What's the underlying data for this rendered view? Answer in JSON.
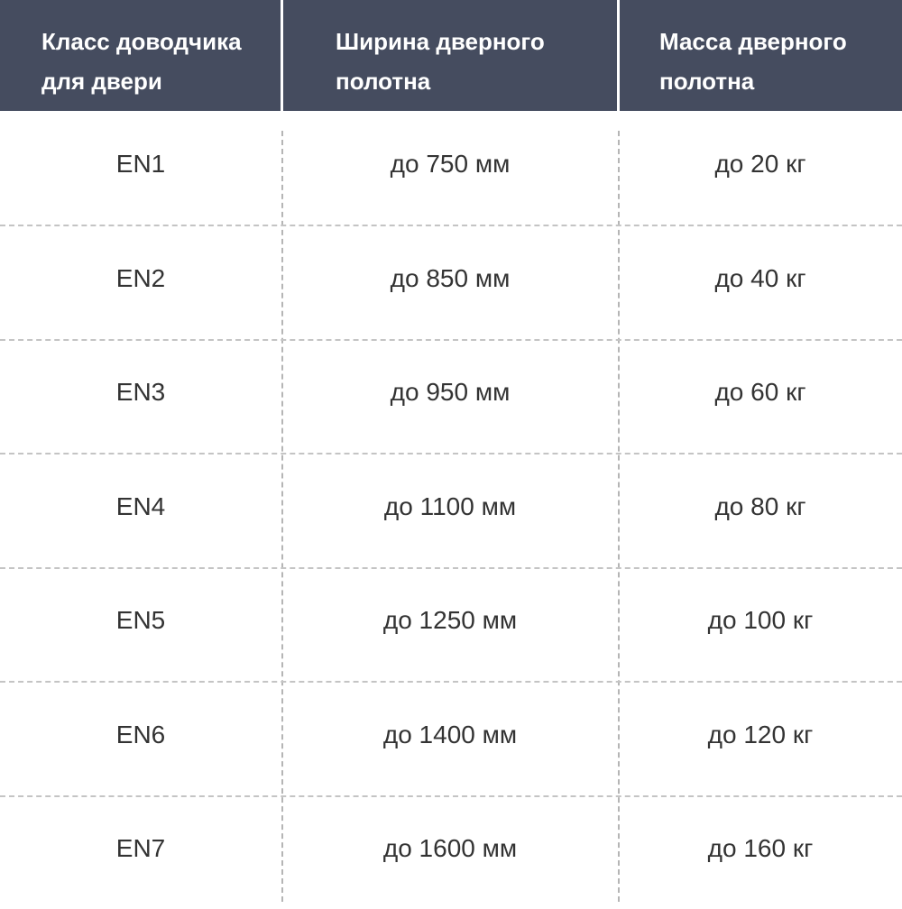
{
  "header": {
    "columns": [
      "Класс доводчика для двери",
      "Ширина дверного полотна",
      "Масса дверного полотна"
    ],
    "background": "#454c5f"
  },
  "rows": [
    [
      "EN1",
      "до 750 мм",
      "до 20 кг"
    ],
    [
      "EN2",
      "до 850 мм",
      "до 40 кг"
    ],
    [
      "EN3",
      "до 950 мм",
      "до 60 кг"
    ],
    [
      "EN4",
      "до 1100 мм",
      "до 80 кг"
    ],
    [
      "EN5",
      "до 1250 мм",
      "до 100 кг"
    ],
    [
      "EN6",
      "до 1400 мм",
      "до 120 кг"
    ],
    [
      "EN7",
      "до 1600 мм",
      "до 160 кг"
    ]
  ]
}
